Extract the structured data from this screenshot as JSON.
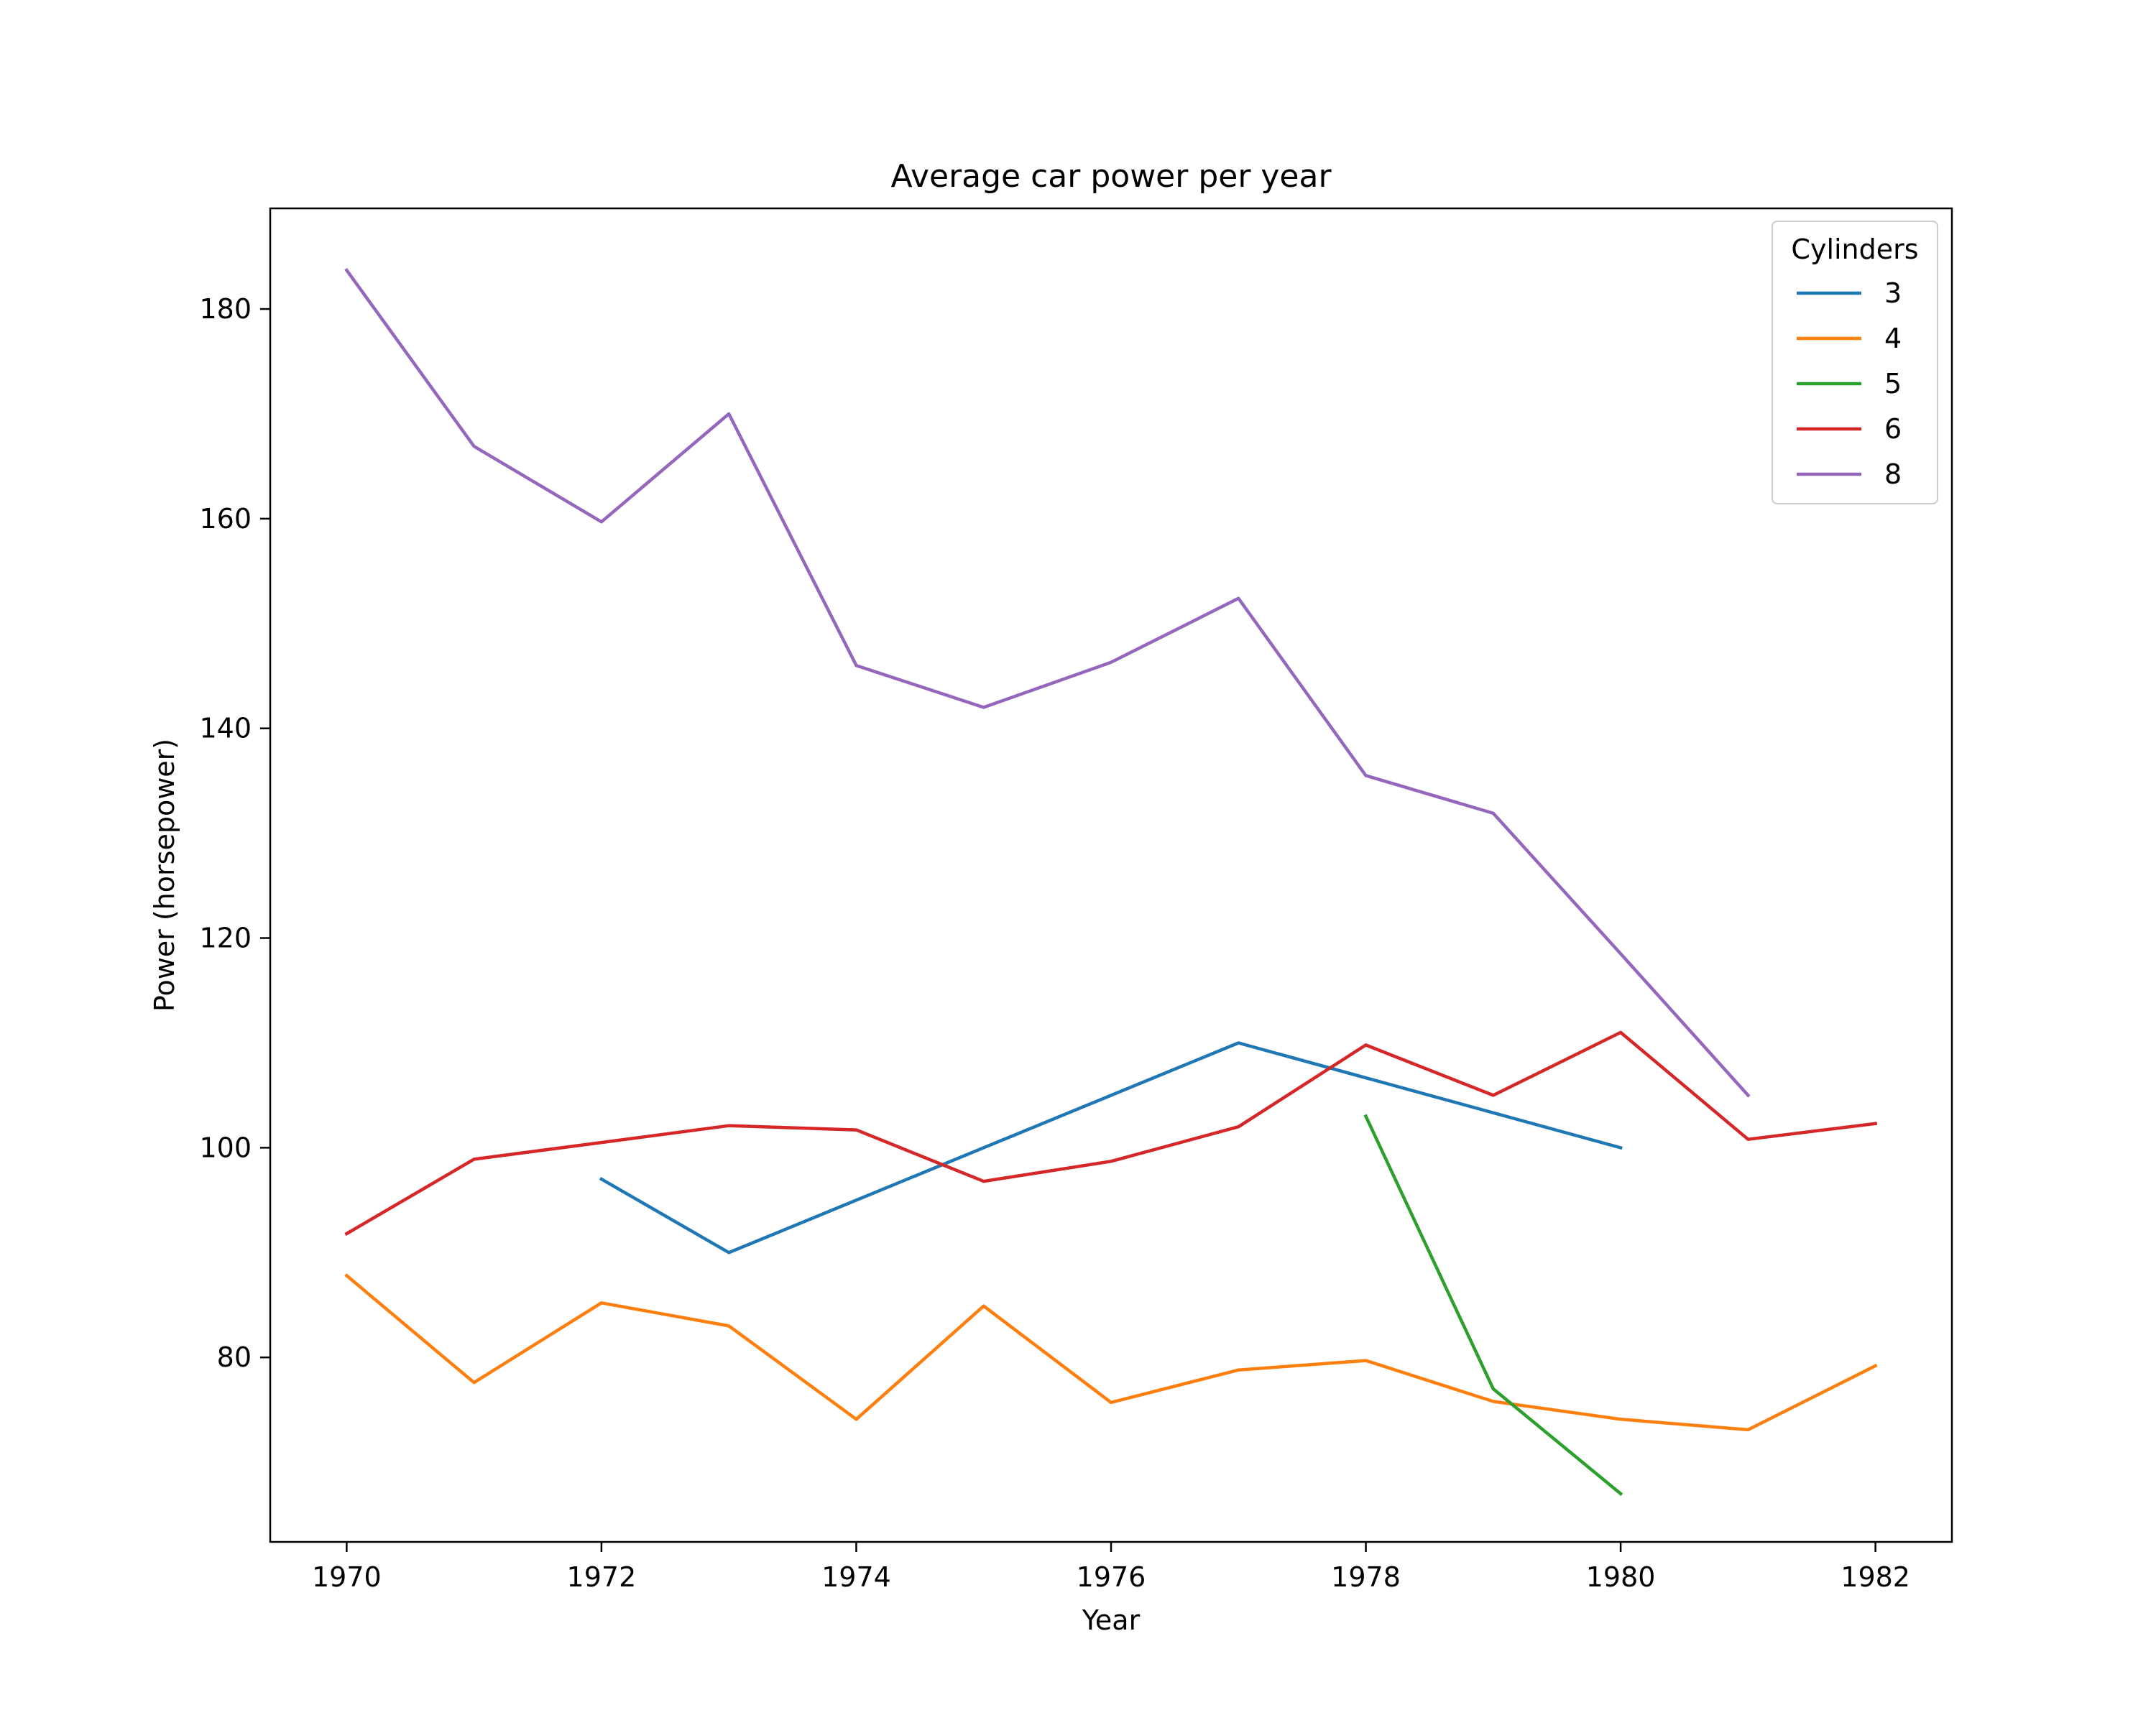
{
  "chart_data": {
    "type": "line",
    "title": "Average car power per year",
    "xlabel": "Year",
    "ylabel": "Power (horsepower)",
    "xlim": [
      1969.4,
      1982.6
    ],
    "ylim": [
      62.4,
      189.6
    ],
    "xticks": [
      1970,
      1972,
      1974,
      1976,
      1978,
      1980,
      1982
    ],
    "yticks": [
      80,
      100,
      120,
      140,
      160,
      180
    ],
    "grid": false,
    "legend": {
      "title": "Cylinders",
      "position": "top-right"
    },
    "series": [
      {
        "name": "3",
        "color": "#1f77b4",
        "x": [
          1972,
          1973,
          1977,
          1980
        ],
        "y": [
          97.0,
          90.0,
          110.0,
          100.0
        ]
      },
      {
        "name": "4",
        "color": "#ff7f0e",
        "x": [
          1970,
          1971,
          1972,
          1973,
          1974,
          1975,
          1976,
          1977,
          1978,
          1979,
          1980,
          1981,
          1982
        ],
        "y": [
          87.8,
          77.6,
          85.2,
          83.0,
          74.1,
          84.9,
          75.7,
          78.8,
          79.7,
          75.8,
          74.1,
          73.1,
          79.2
        ]
      },
      {
        "name": "5",
        "color": "#2ca02c",
        "x": [
          1978,
          1979,
          1980
        ],
        "y": [
          103.0,
          77.0,
          67.0
        ]
      },
      {
        "name": "6",
        "color": "#d62728",
        "x": [
          1970,
          1971,
          1972,
          1973,
          1974,
          1975,
          1976,
          1977,
          1978,
          1979,
          1980,
          1981,
          1982
        ],
        "y": [
          91.8,
          98.9,
          100.5,
          102.1,
          101.7,
          96.8,
          98.7,
          102.0,
          109.8,
          105.0,
          111.0,
          100.8,
          102.3
        ]
      },
      {
        "name": "8",
        "color": "#9467bd",
        "x": [
          1970,
          1971,
          1972,
          1973,
          1974,
          1975,
          1976,
          1977,
          1978,
          1979,
          1980,
          1981
        ],
        "y": [
          183.7,
          166.9,
          159.7,
          170.0,
          146.0,
          142.0,
          146.3,
          152.4,
          135.5,
          131.9,
          118.5,
          105.0
        ]
      }
    ]
  }
}
